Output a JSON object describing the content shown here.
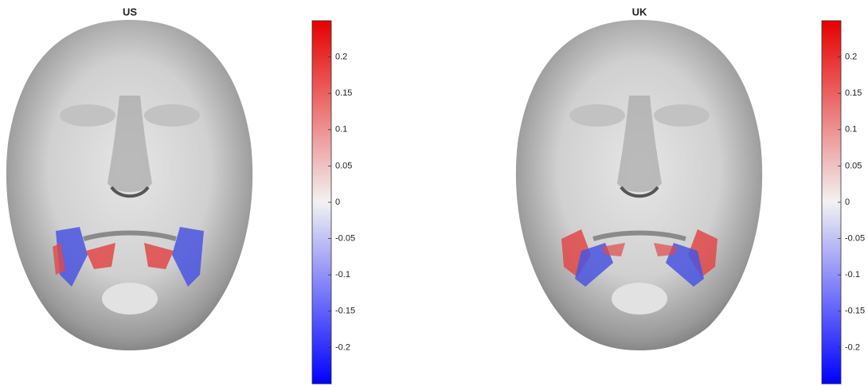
{
  "panels": [
    {
      "title": "US",
      "colorbar": {
        "lim": [
          -0.25,
          0.25
        ],
        "ticks": [
          -0.2,
          -0.15,
          -0.1,
          -0.05,
          0,
          0.05,
          0.1,
          0.15,
          0.2
        ]
      }
    },
    {
      "title": "UK",
      "colorbar": {
        "lim": [
          -0.25,
          0.25
        ],
        "ticks": [
          -0.2,
          -0.15,
          -0.1,
          -0.05,
          0,
          0.05,
          0.1,
          0.15,
          0.2
        ]
      }
    }
  ]
}
